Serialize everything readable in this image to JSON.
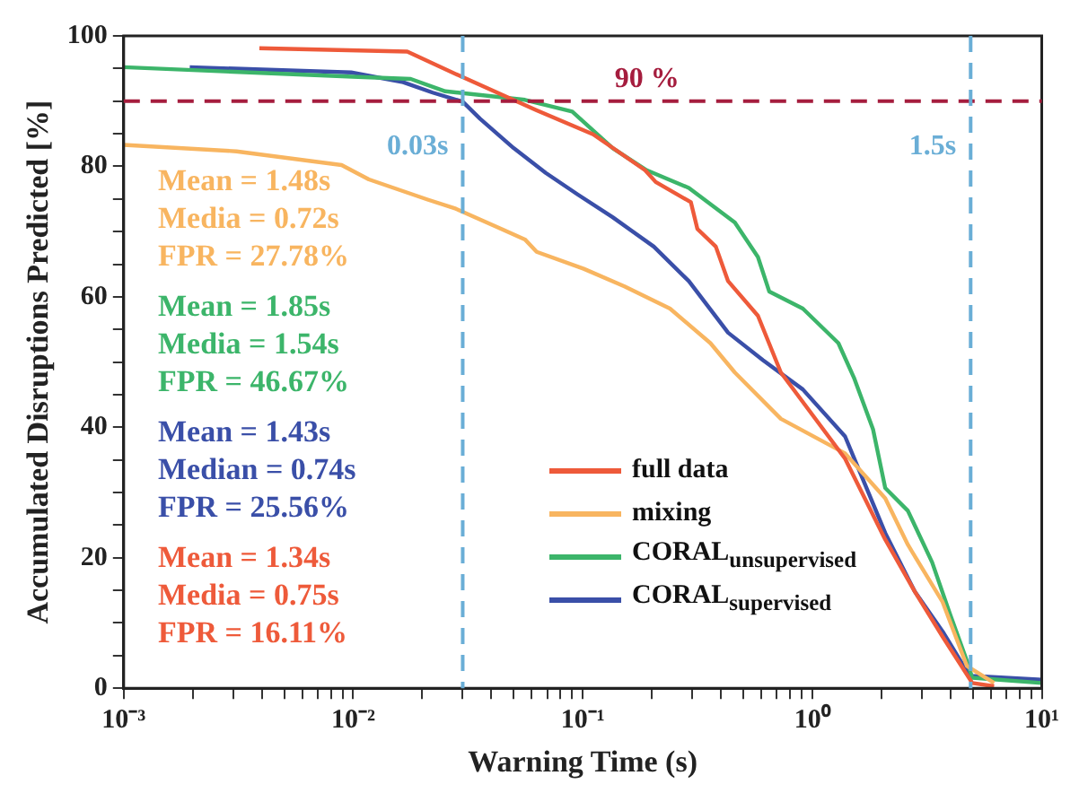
{
  "chart_data": {
    "type": "line",
    "xlabel": "Warning Time (s)",
    "ylabel": "Accumulated Disruptions Predicted [%]",
    "log": "x",
    "xlim": [
      0.001,
      10
    ],
    "ylim": [
      0,
      100
    ],
    "xticks": [
      {
        "value": 0.001,
        "label": "10⁻³"
      },
      {
        "value": 0.002,
        "label": null
      },
      {
        "value": 0.003,
        "label": null
      },
      {
        "value": 0.004,
        "label": null
      },
      {
        "value": 0.005,
        "label": null
      },
      {
        "value": 0.006,
        "label": null
      },
      {
        "value": 0.007,
        "label": null
      },
      {
        "value": 0.008,
        "label": null
      },
      {
        "value": 0.009,
        "label": null
      },
      {
        "value": 0.01,
        "label": "10⁻²"
      },
      {
        "value": 0.02,
        "label": null
      },
      {
        "value": 0.03,
        "label": null
      },
      {
        "value": 0.04,
        "label": null
      },
      {
        "value": 0.05,
        "label": null
      },
      {
        "value": 0.06,
        "label": null
      },
      {
        "value": 0.07,
        "label": null
      },
      {
        "value": 0.08,
        "label": null
      },
      {
        "value": 0.09,
        "label": null
      },
      {
        "value": 0.1,
        "label": "10⁻¹"
      },
      {
        "value": 0.2,
        "label": null
      },
      {
        "value": 0.3,
        "label": null
      },
      {
        "value": 0.4,
        "label": null
      },
      {
        "value": 0.5,
        "label": null
      },
      {
        "value": 0.6,
        "label": null
      },
      {
        "value": 0.7,
        "label": null
      },
      {
        "value": 0.8,
        "label": null
      },
      {
        "value": 0.9,
        "label": null
      },
      {
        "value": 1,
        "label": "10⁰"
      },
      {
        "value": 2,
        "label": null
      },
      {
        "value": 3,
        "label": null
      },
      {
        "value": 4,
        "label": null
      },
      {
        "value": 5,
        "label": null
      },
      {
        "value": 6,
        "label": null
      },
      {
        "value": 7,
        "label": null
      },
      {
        "value": 8,
        "label": null
      },
      {
        "value": 9,
        "label": null
      },
      {
        "value": 10,
        "label": "10¹"
      }
    ],
    "yticks": [
      0,
      {
        "value": 5,
        "label": null
      },
      {
        "value": 10,
        "label": null
      },
      {
        "value": 15,
        "label": null
      },
      20,
      {
        "value": 25,
        "label": null
      },
      {
        "value": 30,
        "label": null
      },
      {
        "value": 35,
        "label": null
      },
      40,
      {
        "value": 45,
        "label": null
      },
      {
        "value": 50,
        "label": null
      },
      {
        "value": 55,
        "label": null
      },
      60,
      {
        "value": 65,
        "label": null
      },
      {
        "value": 70,
        "label": null
      },
      {
        "value": 75,
        "label": null
      },
      80,
      {
        "value": 85,
        "label": null
      },
      {
        "value": 90,
        "label": null
      },
      {
        "value": 95,
        "label": null
      },
      100
    ],
    "grid": false,
    "legend": "bottom right",
    "line_style": "solid",
    "marker": "none",
    "series": [
      {
        "name": "full data",
        "color": "#ee5a3a",
        "x": [
          0.0039,
          0.0172,
          0.029,
          0.063,
          0.111,
          0.187,
          0.208,
          0.296,
          0.316,
          0.38,
          0.43,
          0.58,
          0.73,
          1.39,
          2.08,
          2.8,
          3.7,
          4.98,
          6.2
        ],
        "values": [
          98.1,
          97.6,
          93.9,
          88.6,
          84.9,
          79.4,
          77.6,
          74.5,
          70.4,
          67.7,
          62.4,
          57.1,
          48.4,
          35.2,
          22.8,
          14.8,
          7.9,
          0.8,
          0.3
        ]
      },
      {
        "name": "mixing",
        "color": "#f8b560",
        "x": [
          0.001,
          0.0031,
          0.0089,
          0.0117,
          0.0211,
          0.028,
          0.056,
          0.063,
          0.101,
          0.152,
          0.24,
          0.36,
          0.46,
          0.73,
          1.39,
          2.08,
          2.61,
          3.7,
          4.72,
          6.2
        ],
        "values": [
          83.3,
          82.3,
          80.2,
          78,
          74.9,
          73.5,
          68.8,
          66.9,
          64.3,
          61.6,
          58.2,
          52.9,
          48.4,
          41.3,
          36,
          29.1,
          22,
          13.2,
          3.4,
          0.8
        ]
      },
      {
        "name": "CORAL$_{unsupervised}$",
        "color": "#3cb56a",
        "x": [
          0.001,
          0.0105,
          0.0178,
          0.0252,
          0.056,
          0.09,
          0.135,
          0.19,
          0.29,
          0.46,
          0.58,
          0.65,
          0.91,
          1.3,
          1.52,
          1.84,
          2.08,
          2.61,
          3.33,
          3.98,
          4.72,
          4.98,
          10
        ],
        "values": [
          95.2,
          93.7,
          93.4,
          91.5,
          90.2,
          88.4,
          82.8,
          79.4,
          76.7,
          71.4,
          66.1,
          60.8,
          58.2,
          52.9,
          47.6,
          39.7,
          30.7,
          27.2,
          19.3,
          11.4,
          4.2,
          1.6,
          0.8
        ]
      },
      {
        "name": "CORAL$_{supervised}$",
        "color": "#3a4fa8",
        "x": [
          0.00194,
          0.0098,
          0.0165,
          0.0222,
          0.03,
          0.0357,
          0.05,
          0.069,
          0.095,
          0.135,
          0.204,
          0.29,
          0.43,
          0.61,
          0.91,
          1.39,
          2.08,
          2.8,
          3.7,
          4.72,
          4.98,
          10
        ],
        "values": [
          95.2,
          94.4,
          92.9,
          91.3,
          89.9,
          87.3,
          82.8,
          79,
          75.7,
          72.2,
          67.7,
          62.4,
          54.5,
          50.3,
          45.8,
          38.6,
          23.8,
          14.8,
          8.7,
          2.6,
          1.9,
          1.3
        ]
      }
    ],
    "ref_lines": [
      {
        "axis": "y",
        "value": 90,
        "label": "90 %",
        "color": "#a51d3e",
        "line_style": "dashed"
      },
      {
        "axis": "x",
        "value": 0.03,
        "label": "0.03s",
        "color": "#6aaed6",
        "line_style": "dashed"
      },
      {
        "axis": "x",
        "value": 4.9,
        "label": "1.5s",
        "color": "#6aaed6",
        "line_style": "dashed"
      }
    ],
    "annotations": [
      "Mean = 1.48s",
      "Media = 0.72s",
      "FPR = 27.78%",
      "Mean = 1.85s",
      "Media = 1.54s",
      "FPR = 46.67%",
      "Mean = 1.43s",
      "Median = 0.74s",
      "FPR = 25.56%",
      "Mean = 1.34s",
      "Media = 0.75s",
      "FPR = 16.11%"
    ]
  }
}
